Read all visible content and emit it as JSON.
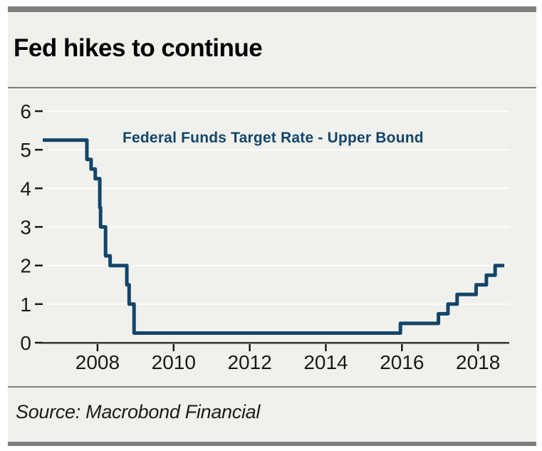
{
  "header": {
    "title": "Fed hikes to continue"
  },
  "footer": {
    "source": "Source: Macrobond Financial"
  },
  "colors": {
    "line": "#134569",
    "legend_text": "#134569",
    "panel_bg": "#f0f1ed",
    "bar_gray": "#7f7f7f",
    "grid_white": "#fcfdfa",
    "axis_dark": "#333333",
    "tick_dark": "#1a1a1a"
  },
  "chart_data": {
    "type": "line",
    "subtype": "step-after",
    "title": "Fed hikes to continue",
    "legend_label": "Federal Funds Target Rate - Upper Bound",
    "legend_position": "inside-top-center",
    "grid": true,
    "xlabel": "",
    "ylabel": "",
    "xlim": [
      2006.56,
      2018.82
    ],
    "ylim": [
      0,
      6
    ],
    "x_ticks": [
      2008,
      2010,
      2012,
      2014,
      2016,
      2018
    ],
    "y_ticks": [
      0,
      1,
      2,
      3,
      4,
      5,
      6
    ],
    "series": [
      {
        "name": "Federal Funds Target Rate - Upper Bound",
        "points": [
          {
            "x": 2006.56,
            "y": 5.25
          },
          {
            "x": 2007.72,
            "y": 4.75
          },
          {
            "x": 2007.83,
            "y": 4.5
          },
          {
            "x": 2007.94,
            "y": 4.25
          },
          {
            "x": 2008.06,
            "y": 3.5
          },
          {
            "x": 2008.08,
            "y": 3.0
          },
          {
            "x": 2008.21,
            "y": 2.25
          },
          {
            "x": 2008.33,
            "y": 2.0
          },
          {
            "x": 2008.77,
            "y": 1.5
          },
          {
            "x": 2008.83,
            "y": 1.0
          },
          {
            "x": 2008.96,
            "y": 0.25
          },
          {
            "x": 2015.96,
            "y": 0.5
          },
          {
            "x": 2016.96,
            "y": 0.75
          },
          {
            "x": 2017.21,
            "y": 1.0
          },
          {
            "x": 2017.45,
            "y": 1.25
          },
          {
            "x": 2017.95,
            "y": 1.5
          },
          {
            "x": 2018.22,
            "y": 1.75
          },
          {
            "x": 2018.45,
            "y": 2.0
          },
          {
            "x": 2018.69,
            "y": 2.0
          }
        ]
      }
    ]
  }
}
